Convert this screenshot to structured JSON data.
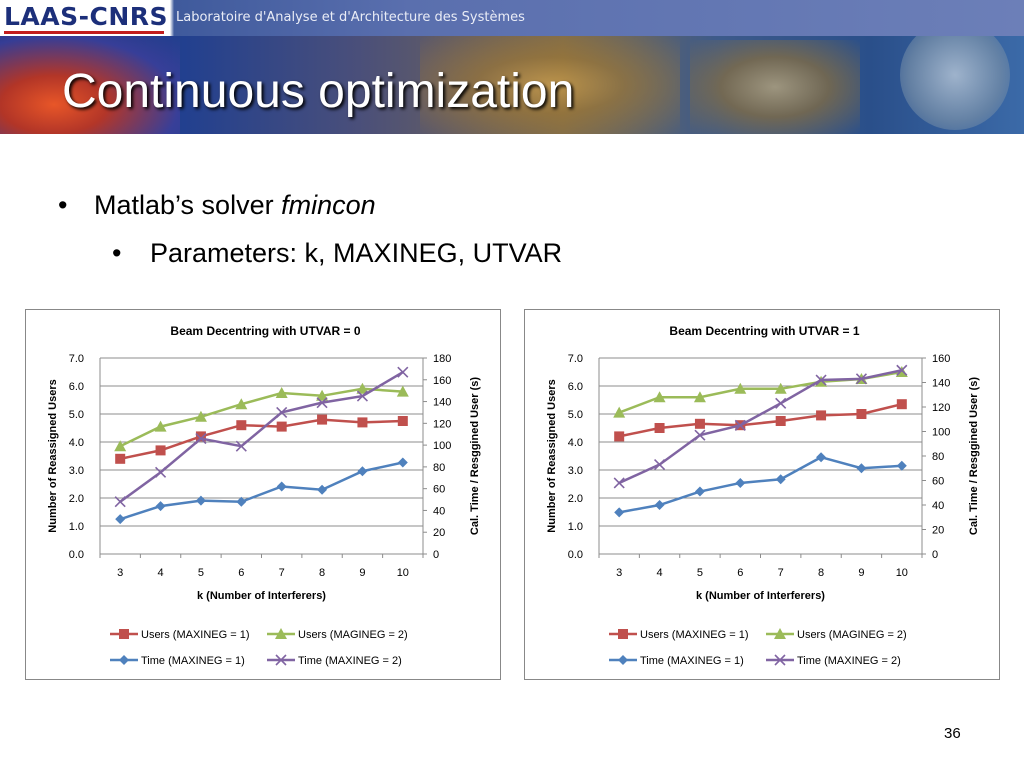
{
  "header": {
    "logo_text": "LAAS-CNRS",
    "subtitle": "Laboratoire d'Analyse et d'Architecture des Systèmes",
    "title": "Continuous optimization"
  },
  "bullets": {
    "level1_prefix": "Matlab’s solver ",
    "level1_italic": "fmincon",
    "level2": "Parameters: k, MAXINEG, UTVAR",
    "bullet_glyph": "•"
  },
  "page_number": "36",
  "chart_data": [
    {
      "type": "line",
      "title": "Beam Decentring with UTVAR = 0",
      "xlabel": "k (Number of Interferers)",
      "ylabel": "Number of Reassigned Users",
      "y2label": "Cal. Time / Resggined User (s)",
      "categories": [
        "3",
        "4",
        "5",
        "6",
        "7",
        "8",
        "9",
        "10"
      ],
      "ylim": [
        0,
        7
      ],
      "yticks": [
        "0.0",
        "1.0",
        "2.0",
        "3.0",
        "4.0",
        "5.0",
        "6.0",
        "7.0"
      ],
      "y2lim": [
        0,
        180
      ],
      "y2ticks": [
        "0",
        "20",
        "40",
        "60",
        "80",
        "100",
        "120",
        "140",
        "160",
        "180"
      ],
      "grid": true,
      "legend_position": "bottom",
      "series": [
        {
          "name": "Users (MAXINEG = 1)",
          "axis": "left",
          "marker": "square",
          "color": "#c0504d",
          "values": [
            3.4,
            3.7,
            4.2,
            4.6,
            4.55,
            4.8,
            4.7,
            4.75
          ]
        },
        {
          "name": "Users (MAGINEG = 2)",
          "axis": "left",
          "marker": "triangle",
          "color": "#9bbb59",
          "values": [
            3.85,
            4.55,
            4.9,
            5.35,
            5.75,
            5.65,
            5.9,
            5.8
          ]
        },
        {
          "name": "Time (MAXINEG = 1)",
          "axis": "right",
          "marker": "diamond",
          "color": "#4f81bd",
          "values": [
            32,
            44,
            49,
            48,
            62,
            59,
            76,
            84
          ]
        },
        {
          "name": "Time (MAXINEG = 2)",
          "axis": "right",
          "marker": "x",
          "color": "#8064a2",
          "values": [
            48,
            75,
            106,
            99,
            130,
            139,
            145,
            167
          ]
        }
      ]
    },
    {
      "type": "line",
      "title": "Beam Decentring with UTVAR = 1",
      "xlabel": "k (Number of Interferers)",
      "ylabel": "Number of Reassigned Users",
      "y2label": "Cal. Time / Resggined User (s)",
      "categories": [
        "3",
        "4",
        "5",
        "6",
        "7",
        "8",
        "9",
        "10"
      ],
      "ylim": [
        0,
        7
      ],
      "yticks": [
        "0.0",
        "1.0",
        "2.0",
        "3.0",
        "4.0",
        "5.0",
        "6.0",
        "7.0"
      ],
      "y2lim": [
        0,
        160
      ],
      "y2ticks": [
        "0",
        "20",
        "40",
        "60",
        "80",
        "100",
        "120",
        "140",
        "160"
      ],
      "grid": true,
      "legend_position": "bottom",
      "series": [
        {
          "name": "Users (MAXINEG = 1)",
          "axis": "left",
          "marker": "square",
          "color": "#c0504d",
          "values": [
            4.2,
            4.5,
            4.65,
            4.6,
            4.75,
            4.95,
            5.0,
            5.35
          ]
        },
        {
          "name": "Users (MAGINEG = 2)",
          "axis": "left",
          "marker": "triangle",
          "color": "#9bbb59",
          "values": [
            5.05,
            5.6,
            5.6,
            5.9,
            5.9,
            6.15,
            6.25,
            6.5
          ]
        },
        {
          "name": "Time (MAXINEG = 1)",
          "axis": "right",
          "marker": "diamond",
          "color": "#4f81bd",
          "values": [
            34,
            40,
            51,
            58,
            61,
            79,
            70,
            72
          ]
        },
        {
          "name": "Time (MAXINEG = 2)",
          "axis": "right",
          "marker": "x",
          "color": "#8064a2",
          "values": [
            58,
            73,
            97,
            105,
            123,
            142,
            143,
            150
          ]
        }
      ]
    }
  ]
}
